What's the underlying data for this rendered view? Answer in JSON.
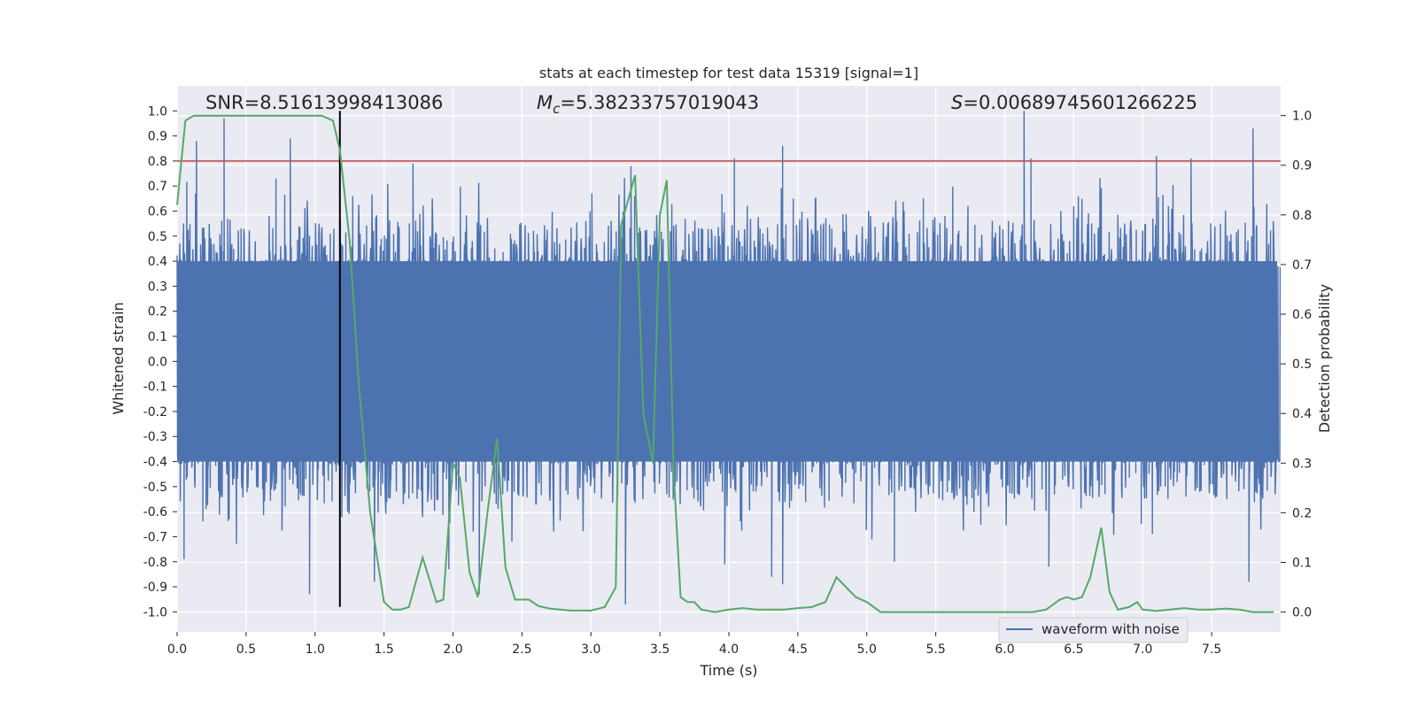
{
  "chart_data": {
    "type": "line",
    "title": "stats at each timestep for test data 15319 [signal=1]",
    "xlabel": "Time (s)",
    "ylabel": "Whitened strain",
    "y2label": "Detection probability",
    "xlim": [
      0.0,
      8.0
    ],
    "ylim": [
      -1.08,
      1.1
    ],
    "y2lim": [
      -0.04,
      1.06
    ],
    "x_ticks": [
      "0.0",
      "0.5",
      "1.0",
      "1.5",
      "2.0",
      "2.5",
      "3.0",
      "3.5",
      "4.0",
      "4.5",
      "5.0",
      "5.5",
      "6.0",
      "6.5",
      "7.0",
      "7.5"
    ],
    "y_ticks": [
      "1.0",
      "0.9",
      "0.8",
      "0.7",
      "0.6",
      "0.5",
      "0.4",
      "0.3",
      "0.2",
      "0.1",
      "0.0",
      "-0.1",
      "-0.2",
      "-0.3",
      "-0.4",
      "-0.5",
      "-0.6",
      "-0.7",
      "-0.8",
      "-0.9",
      "-1.0"
    ],
    "y2_ticks": [
      "1.0",
      "0.9",
      "0.8",
      "0.7",
      "0.6",
      "0.5",
      "0.4",
      "0.3",
      "0.2",
      "0.1",
      "0.0"
    ],
    "grid": true,
    "annotations": {
      "snr": "SNR=8.51613998413086",
      "mc_symbol": "M",
      "mc_sub": "c",
      "mc_value": "=5.38233757019043",
      "s_symbol": "S",
      "s_value": "=0.00689745601266225"
    },
    "threshold_y": 0.8,
    "event_time": 1.18,
    "legend": {
      "label": "waveform with noise",
      "position": "lower-right"
    },
    "series": [
      {
        "name": "waveform with noise",
        "axis": "left",
        "color": "#4c72b0",
        "envelope_base": 0.4,
        "peaks": [
          {
            "x": 0.14,
            "y": 0.88
          },
          {
            "x": 0.34,
            "y": 0.97
          },
          {
            "x": 0.82,
            "y": 0.89
          },
          {
            "x": 1.71,
            "y": 0.79
          },
          {
            "x": 3.29,
            "y": 0.78
          },
          {
            "x": 4.04,
            "y": 0.81
          },
          {
            "x": 4.39,
            "y": 0.86
          },
          {
            "x": 6.14,
            "y": 1.0
          },
          {
            "x": 6.19,
            "y": 0.81
          },
          {
            "x": 7.1,
            "y": 0.82
          },
          {
            "x": 7.35,
            "y": 0.81
          },
          {
            "x": 7.8,
            "y": 0.93
          }
        ],
        "troughs": [
          {
            "x": 0.05,
            "y": -0.79
          },
          {
            "x": 0.96,
            "y": -0.93
          },
          {
            "x": 1.43,
            "y": -0.88
          },
          {
            "x": 1.97,
            "y": -0.83
          },
          {
            "x": 2.19,
            "y": -0.93
          },
          {
            "x": 3.25,
            "y": -0.97
          },
          {
            "x": 3.97,
            "y": -0.81
          },
          {
            "x": 4.31,
            "y": -0.86
          },
          {
            "x": 4.39,
            "y": -0.89
          },
          {
            "x": 5.2,
            "y": -0.8
          },
          {
            "x": 6.32,
            "y": -0.82
          },
          {
            "x": 7.77,
            "y": -0.88
          }
        ]
      },
      {
        "name": "detection probability",
        "axis": "right",
        "color": "#55a868",
        "x": [
          0.0,
          0.06,
          0.12,
          0.3,
          0.6,
          0.9,
          1.05,
          1.13,
          1.18,
          1.25,
          1.32,
          1.4,
          1.5,
          1.56,
          1.62,
          1.68,
          1.78,
          1.88,
          1.93,
          2.0,
          2.05,
          2.12,
          2.18,
          2.25,
          2.32,
          2.38,
          2.45,
          2.55,
          2.62,
          2.7,
          2.85,
          3.0,
          3.1,
          3.18,
          3.22,
          3.26,
          3.32,
          3.38,
          3.45,
          3.5,
          3.55,
          3.6,
          3.65,
          3.7,
          3.75,
          3.8,
          3.9,
          4.0,
          4.1,
          4.2,
          4.3,
          4.4,
          4.5,
          4.6,
          4.7,
          4.78,
          4.85,
          4.92,
          5.0,
          5.1,
          5.2,
          5.3,
          5.5,
          5.7,
          6.0,
          6.2,
          6.3,
          6.4,
          6.45,
          6.5,
          6.56,
          6.62,
          6.7,
          6.76,
          6.82,
          6.9,
          6.96,
          7.0,
          7.1,
          7.2,
          7.3,
          7.4,
          7.5,
          7.6,
          7.7,
          7.8,
          7.86,
          7.95
        ],
        "values": [
          0.82,
          0.99,
          1.0,
          1.0,
          1.0,
          1.0,
          1.0,
          0.99,
          0.93,
          0.75,
          0.45,
          0.2,
          0.02,
          0.005,
          0.005,
          0.01,
          0.11,
          0.02,
          0.025,
          0.3,
          0.27,
          0.08,
          0.03,
          0.2,
          0.35,
          0.09,
          0.025,
          0.025,
          0.012,
          0.007,
          0.003,
          0.003,
          0.01,
          0.05,
          0.78,
          0.82,
          0.88,
          0.4,
          0.3,
          0.8,
          0.87,
          0.28,
          0.03,
          0.02,
          0.02,
          0.005,
          0.0,
          0.005,
          0.008,
          0.005,
          0.005,
          0.005,
          0.008,
          0.01,
          0.02,
          0.07,
          0.05,
          0.03,
          0.02,
          0.0,
          0.0,
          0.0,
          0.0,
          0.0,
          0.0,
          0.0,
          0.005,
          0.025,
          0.03,
          0.025,
          0.03,
          0.07,
          0.17,
          0.04,
          0.005,
          0.01,
          0.02,
          0.005,
          0.002,
          0.005,
          0.008,
          0.005,
          0.005,
          0.007,
          0.005,
          0.0,
          0.0,
          0.0
        ]
      }
    ]
  }
}
